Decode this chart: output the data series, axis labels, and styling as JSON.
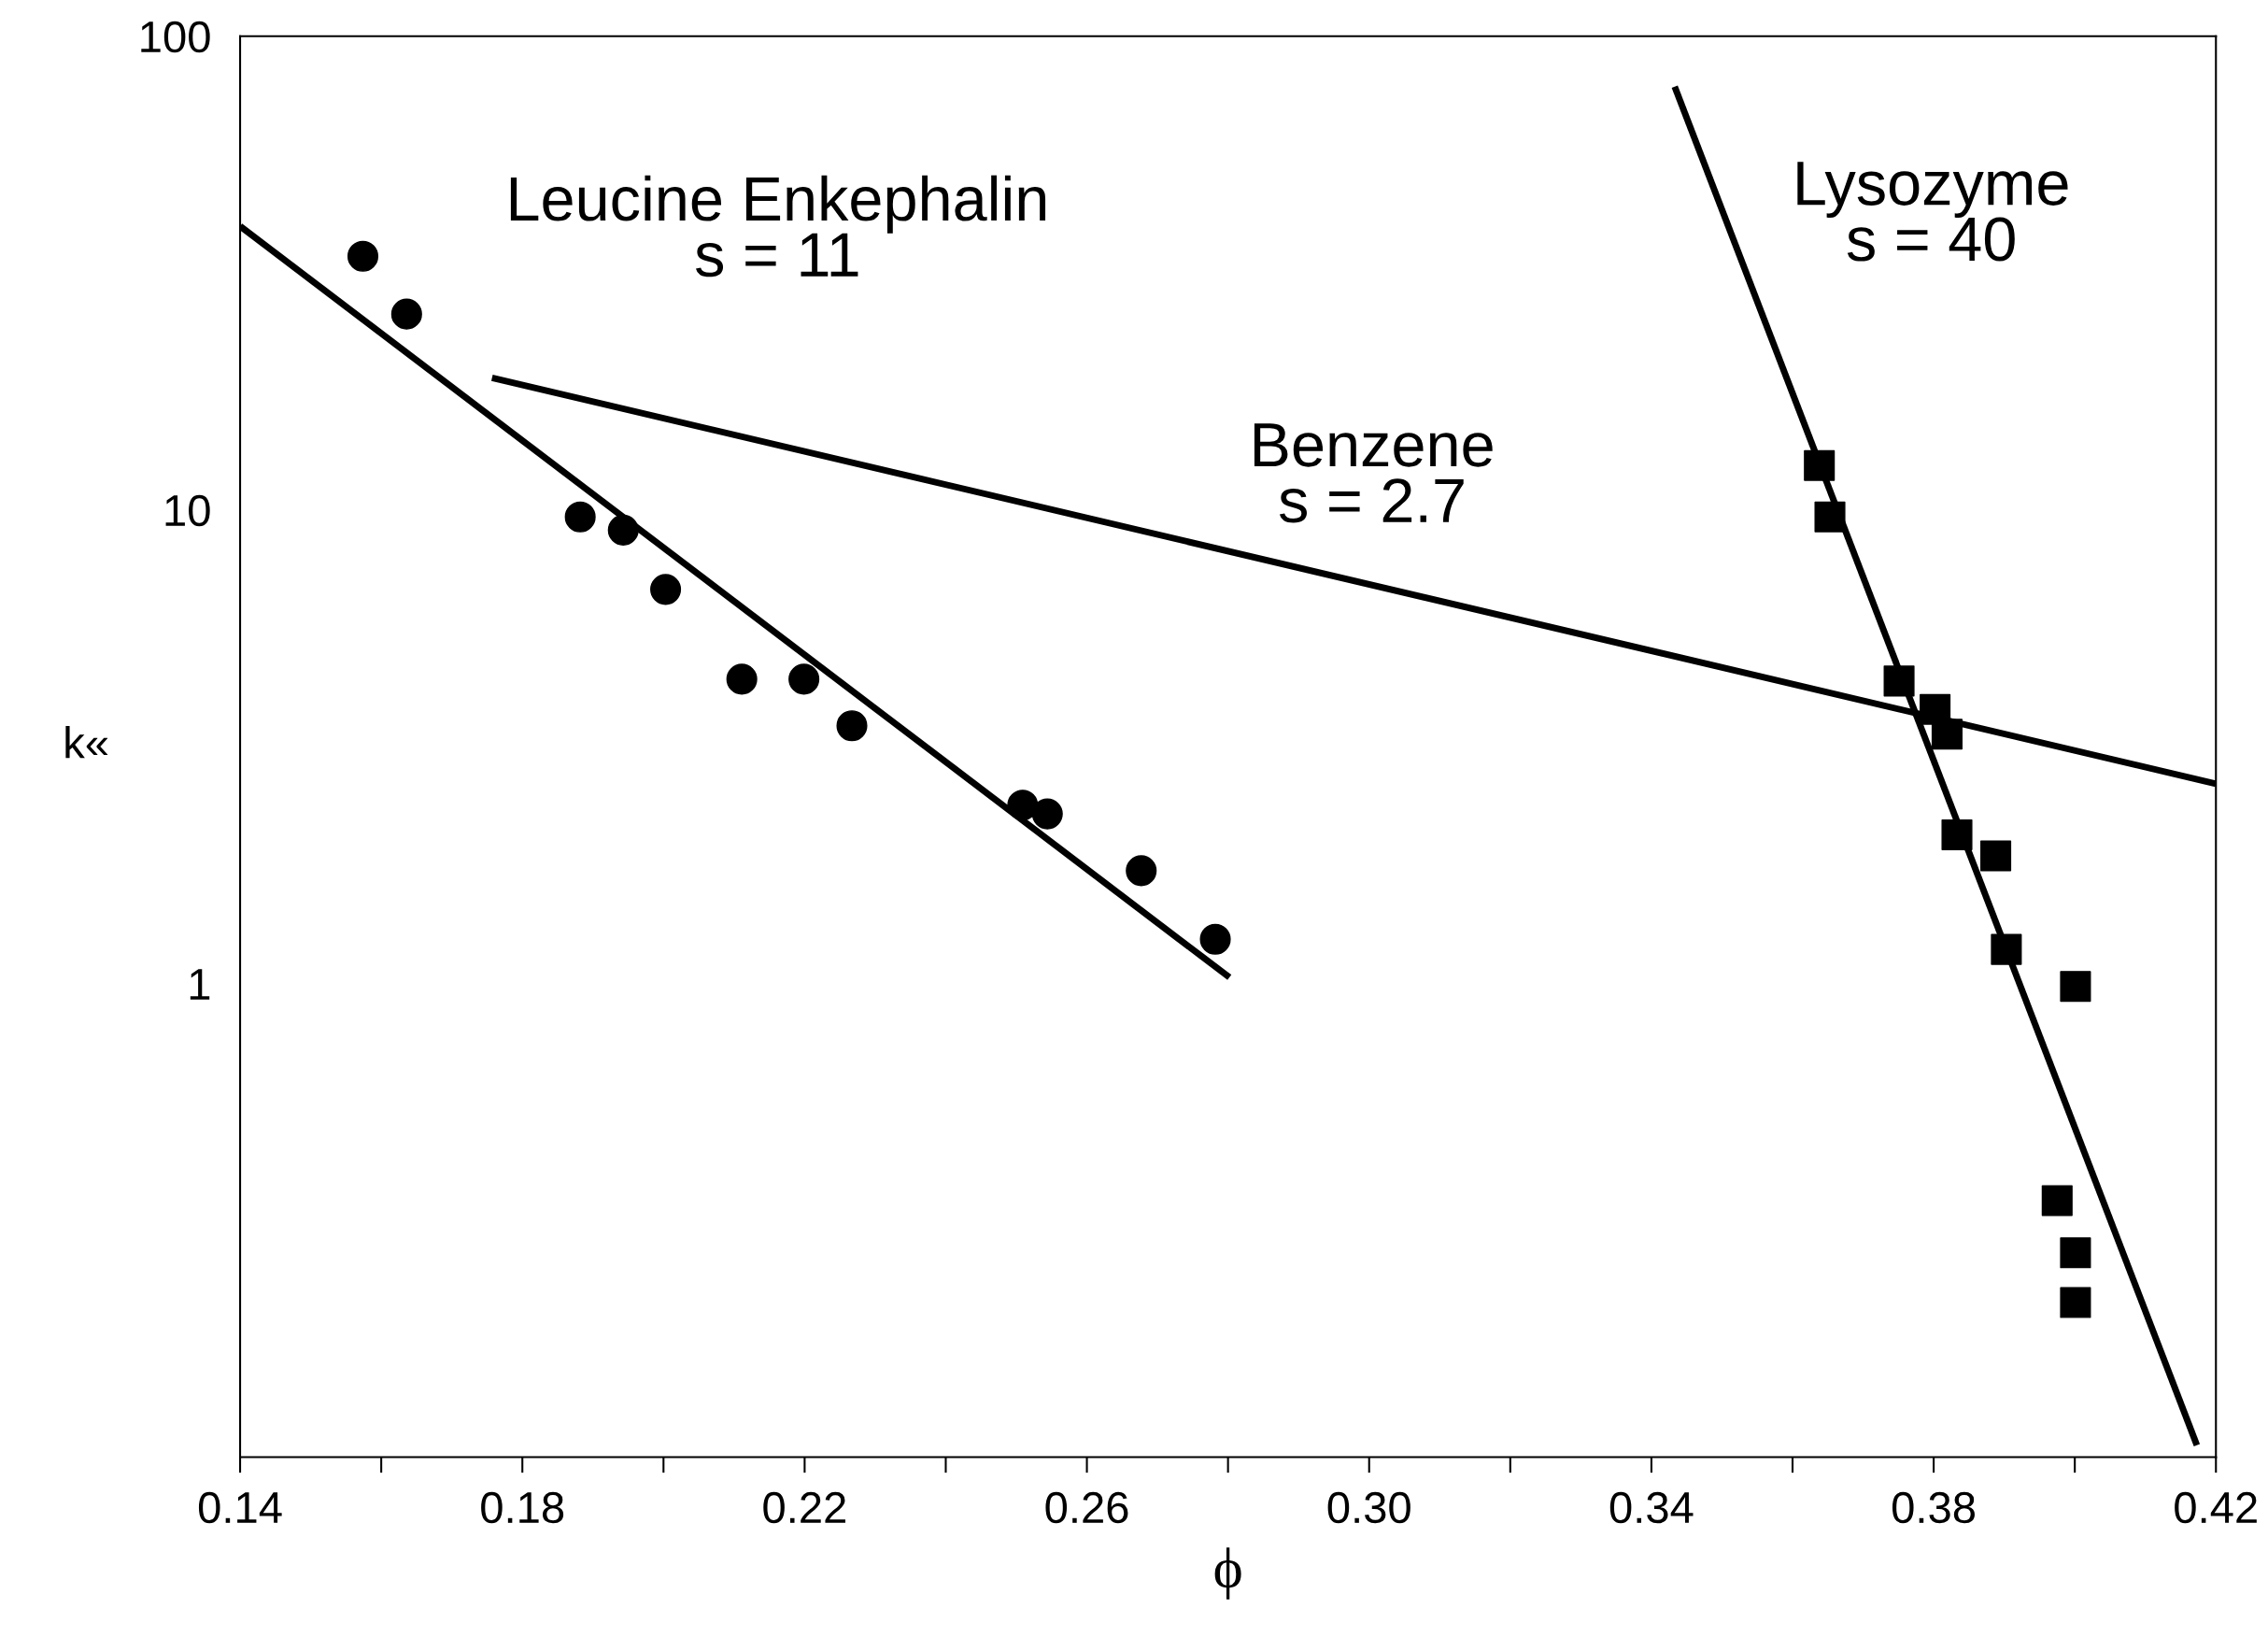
{
  "chart_data": {
    "type": "scatter",
    "xlabel": "ϕ",
    "ylabel": "k«",
    "log": "y",
    "xlim": [
      0.14,
      0.42
    ],
    "ylim": [
      0.1,
      100
    ],
    "xticks": [
      0.14,
      0.18,
      0.22,
      0.26,
      {
        "value": 0.3,
        "label": "0.30"
      },
      0.34,
      0.38,
      0.42
    ],
    "yticks": [
      1,
      10,
      100
    ],
    "grid": false,
    "legend": false,
    "series": [
      {
        "marker": "circle",
        "color": "#000000",
        "x": [
          0.1574,
          0.1636,
          0.1882,
          0.1943,
          0.2003,
          0.2111,
          0.2199,
          0.2267,
          0.2509,
          0.2544,
          0.2677,
          0.2782
        ],
        "values": [
          34.3,
          25.9,
          9.66,
          9.06,
          6.79,
          4.39,
          4.39,
          3.5,
          2.38,
          2.28,
          1.73,
          1.24
        ]
      },
      {
        "marker": "square",
        "color": "#000000",
        "x": [
          0.3638,
          0.3653,
          0.3751,
          0.3802,
          0.3819,
          0.3833,
          0.3888,
          0.3903,
          0.4001,
          0.3975,
          0.4001,
          0.4001
        ],
        "values": [
          12.4,
          9.66,
          4.35,
          3.79,
          3.36,
          2.06,
          1.86,
          1.18,
          0.986,
          0.348,
          0.27,
          0.212
        ]
      },
      {
        "type": "line",
        "marker": "none",
        "color": "#000000",
        "x": [
          0.14,
          0.2802
        ],
        "values": [
          39.7,
          1.03
        ]
      },
      {
        "type": "line",
        "marker": "none",
        "color": "#000000",
        "x": [
          0.1757,
          0.42
        ],
        "values": [
          19.0,
          2.64
        ]
      },
      {
        "type": "line",
        "marker": "none",
        "color": "#000000",
        "x": [
          0.3433,
          0.4173
        ],
        "values": [
          78.2,
          0.106
        ]
      }
    ],
    "annotations": [
      "Leucine Enkephalin\ns = 11",
      "Benzene\ns = 2.7",
      "Lysozyme\ns = 40"
    ]
  }
}
